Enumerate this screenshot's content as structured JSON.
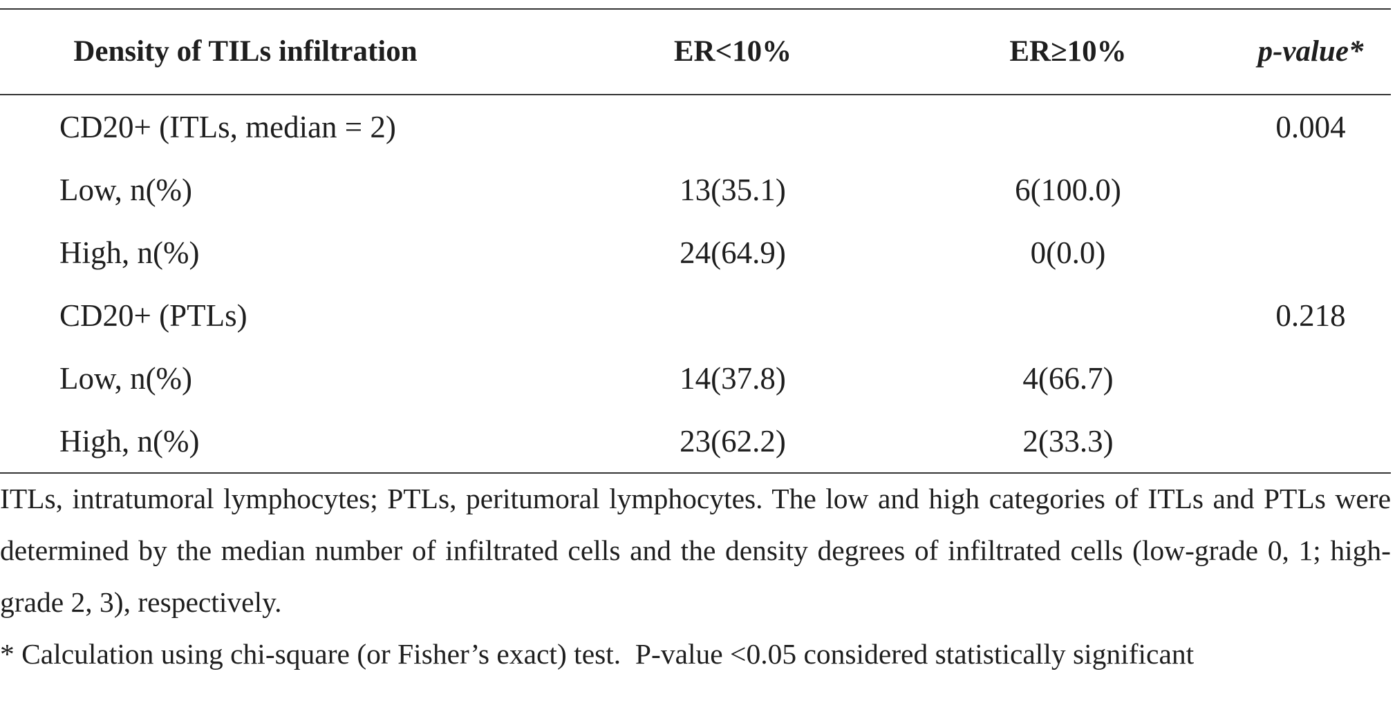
{
  "table": {
    "headers": {
      "label": "Density of TILs infiltration",
      "er_low": "ER<10%",
      "er_high": "ER≥10%",
      "p_value": "p-value*"
    },
    "rows": [
      {
        "label": "CD20+ (ITLs, median = 2)",
        "er_low": "",
        "er_high": "",
        "p": "0.004"
      },
      {
        "label": "Low, n(%)",
        "er_low": "13(35.1)",
        "er_high": "6(100.0)",
        "p": ""
      },
      {
        "label": "High, n(%)",
        "er_low": "24(64.9)",
        "er_high": "0(0.0)",
        "p": ""
      },
      {
        "label": "CD20+ (PTLs)",
        "er_low": "",
        "er_high": "",
        "p": "0.218"
      },
      {
        "label": "Low, n(%)",
        "er_low": "14(37.8)",
        "er_high": "4(66.7)",
        "p": ""
      },
      {
        "label": "High, n(%)",
        "er_low": "23(62.2)",
        "er_high": "2(33.3)",
        "p": ""
      }
    ]
  },
  "footnotes": {
    "abbreviations": "ITLs, intratumoral lymphocytes; PTLs, peritumoral lymphocytes. The low and high categories of ITLs and PTLs were determined by the median number of infiltrated cells and the density degrees of infiltrated cells (low-grade 0, 1; high-grade 2, 3), respectively.",
    "significance": "* Calculation using chi-square (or Fisher’s exact) test.  P-value <0.05 considered statistically significant"
  }
}
